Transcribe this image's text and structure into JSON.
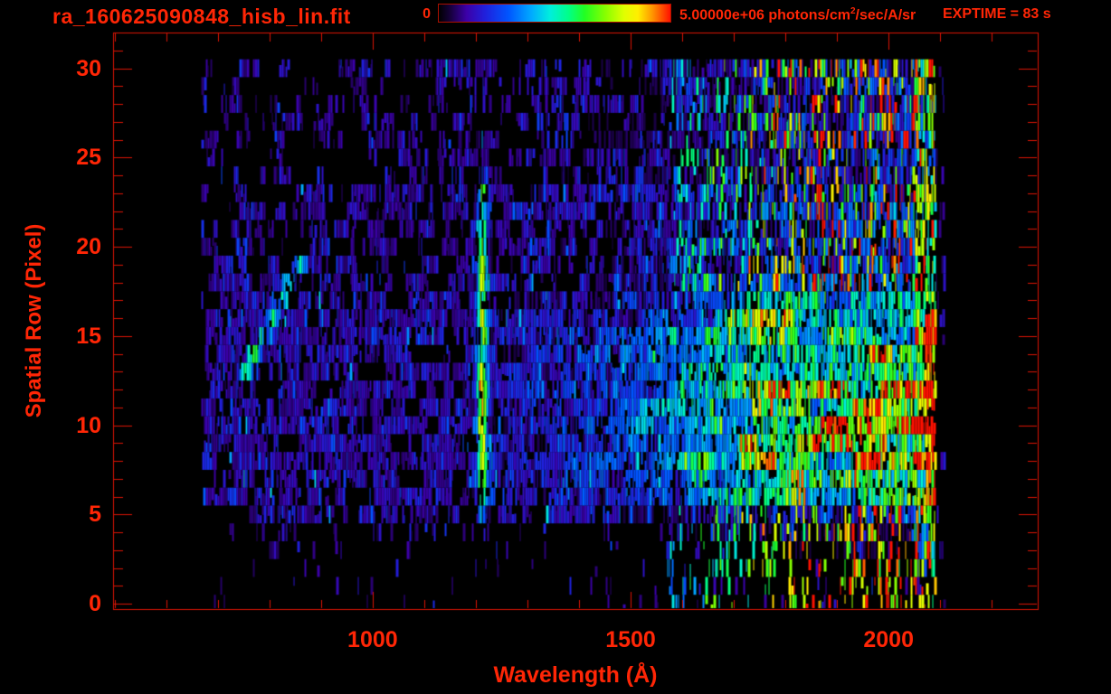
{
  "header": {
    "title": "ra_160625090848_hisb_lin.fit",
    "colorbar_min_label": "0",
    "colorbar_max_label_prefix": "5.00000e+06 photons/cm",
    "colorbar_max_label_sup": "2",
    "colorbar_max_label_suffix": "/sec/A/sr",
    "exptime_label": "EXPTIME = 83 s"
  },
  "axes": {
    "xlabel": "Wavelength (Å)",
    "ylabel": "Spatial Row (Pixel)"
  },
  "colors": {
    "background": "#000000",
    "axis_red": "#dd1404",
    "text_red": "#ff2606",
    "colorbar_border": "#aa1000"
  },
  "chart_data": {
    "type": "heatmap",
    "title": "ra_160625090848_hisb_lin.fit",
    "xlabel": "Wavelength (Å)",
    "ylabel": "Spatial Row (Pixel)",
    "xlim": [
      497,
      2289
    ],
    "ylim": [
      -0.3,
      32.0
    ],
    "x_ticks": [
      1000,
      1500,
      2000
    ],
    "x_minor_tick_step": 100,
    "x_minor_tick_range": [
      500,
      2200
    ],
    "y_ticks": [
      0,
      5,
      10,
      15,
      20,
      25,
      30
    ],
    "y_minor_tick_step": 1,
    "grid": false,
    "colorbar": {
      "min": 0,
      "max": 5000000,
      "max_label": "5.00000e+06",
      "units": "photons/cm^2/sec/A/sr",
      "position": "top"
    },
    "exptime_seconds": 83,
    "data_extent": {
      "wavelength": [
        668,
        2091
      ],
      "rows": [
        0,
        30
      ]
    },
    "row_profile": [
      0.04,
      0.04,
      0.05,
      0.07,
      0.1,
      0.3,
      0.7,
      0.9,
      1.0,
      1.05,
      1.05,
      1.0,
      0.95,
      0.9,
      0.88,
      0.92,
      0.8,
      0.6,
      0.45,
      0.4,
      0.35,
      0.33,
      0.32,
      0.3,
      0.28,
      0.26,
      0.25,
      0.24,
      0.22,
      0.2,
      0.26
    ],
    "continuum_points": [
      [
        668,
        0.02
      ],
      [
        1150,
        0.03
      ],
      [
        1250,
        0.06
      ],
      [
        1350,
        0.1
      ],
      [
        1450,
        0.16
      ],
      [
        1550,
        0.26
      ],
      [
        1650,
        0.42
      ],
      [
        1750,
        0.58
      ],
      [
        1850,
        0.66
      ],
      [
        1950,
        0.7
      ],
      [
        2050,
        0.72
      ],
      [
        2088,
        0.66
      ]
    ],
    "features": [
      {
        "name": "lyman-alpha-emission-line",
        "wavelength": 1213,
        "sigma": 7,
        "rows": [
          4,
          24.5
        ],
        "strength": 0.58
      },
      {
        "name": "diagonal-streak",
        "from": {
          "wavelength": 865,
          "row": 19.5
        },
        "to": {
          "wavelength": 755,
          "row": 13
        },
        "sigma": 9,
        "strength": 0.4,
        "blob_wavelength": 766
      },
      {
        "name": "detector-edge-hot-strip",
        "wavelength_range": [
          2052,
          2091
        ],
        "red_boost_wavelength": 2070,
        "red_boost_rows": [
          6,
          16.5
        ],
        "strength": 0.6
      },
      {
        "name": "stray-counts-past-edge",
        "wavelength_range": [
          2091,
          2106
        ],
        "probability": 0.2
      }
    ],
    "colormap_stops": [
      [
        0,
        "#000000"
      ],
      [
        0.05,
        "#16003c"
      ],
      [
        0.12,
        "#3c00a8"
      ],
      [
        0.2,
        "#2020dc"
      ],
      [
        0.3,
        "#0055ff"
      ],
      [
        0.4,
        "#00aaff"
      ],
      [
        0.48,
        "#00eedd"
      ],
      [
        0.56,
        "#00ff88"
      ],
      [
        0.63,
        "#22ff22"
      ],
      [
        0.72,
        "#88ff00"
      ],
      [
        0.8,
        "#e0ff00"
      ],
      [
        0.86,
        "#ffee00"
      ],
      [
        0.92,
        "#ff9900"
      ],
      [
        1,
        "#ff1100"
      ]
    ],
    "random_seed": 1606250908
  }
}
